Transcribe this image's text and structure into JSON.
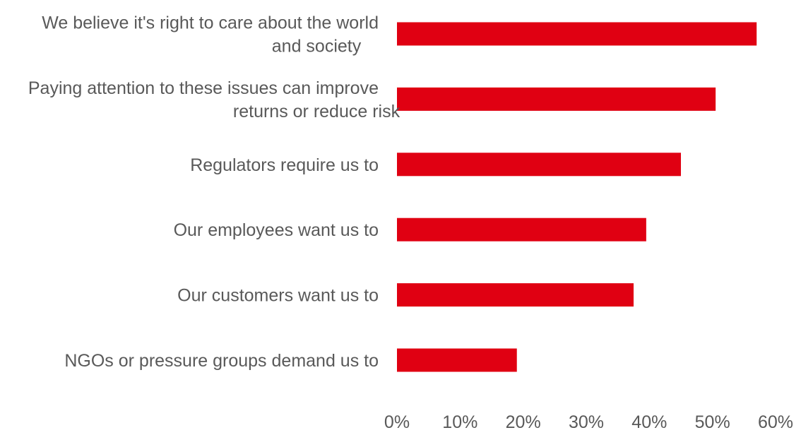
{
  "chart_data": {
    "type": "bar",
    "orientation": "horizontal",
    "title": "",
    "xlabel": "",
    "ylabel": "",
    "xlim": [
      0,
      60
    ],
    "grid": false,
    "legend": "none",
    "categories": [
      [
        "We believe it's right to care about the world",
        "and society"
      ],
      [
        "Paying attention to these issues can improve",
        "returns or reduce risk"
      ],
      [
        "Regulators require us to"
      ],
      [
        "Our employees want us to"
      ],
      [
        "Our customers want us to"
      ],
      [
        "NGOs or pressure groups demand us to"
      ]
    ],
    "values": [
      57,
      50.5,
      45,
      39.5,
      37.5,
      19
    ],
    "x_ticks": [
      "0%",
      "10%",
      "20%",
      "30%",
      "40%",
      "50%",
      "60%"
    ],
    "x_tick_values": [
      0,
      10,
      20,
      30,
      40,
      50,
      60
    ],
    "bar_color": "#E00012"
  }
}
